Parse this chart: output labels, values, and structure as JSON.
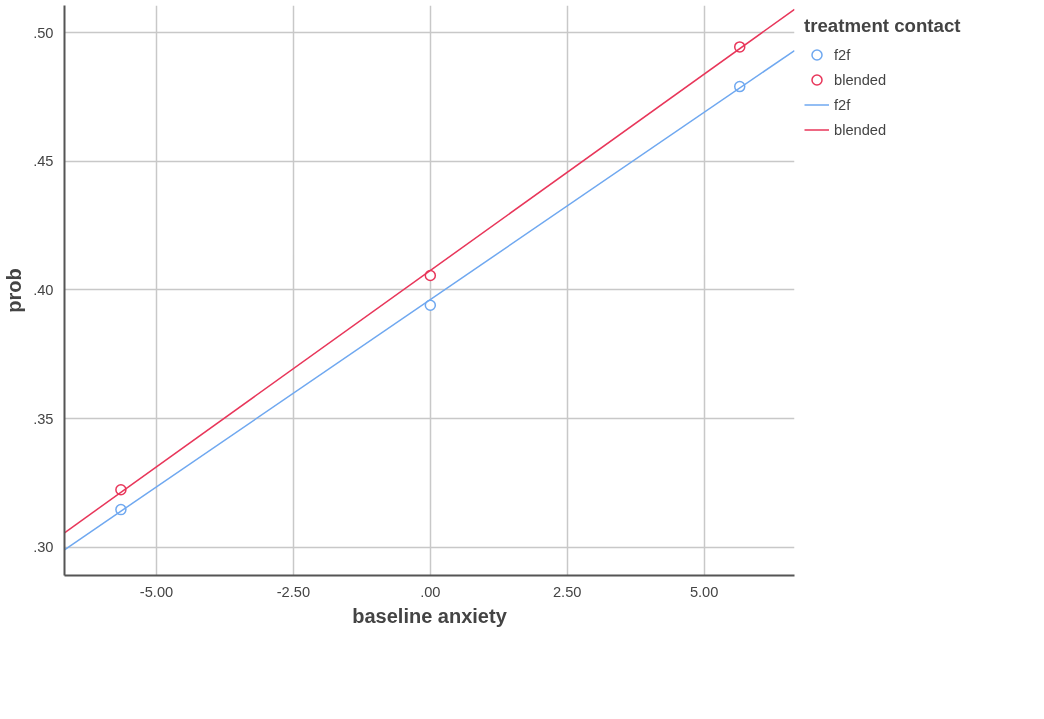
{
  "chart_data": {
    "type": "scatter",
    "xlabel": "baseline anxiety",
    "ylabel": "prob",
    "legend_title": "treatment contact",
    "xlim": [
      -6.68,
      6.65
    ],
    "ylim": [
      0.289,
      0.5105
    ],
    "xticks": [
      {
        "value": -5,
        "label": "-5.00"
      },
      {
        "value": -2.5,
        "label": "-2.50"
      },
      {
        "value": 0,
        "label": ".00"
      },
      {
        "value": 2.5,
        "label": "2.50"
      },
      {
        "value": 5,
        "label": "5.00"
      }
    ],
    "yticks": [
      {
        "value": 0.3,
        "label": ".30"
      },
      {
        "value": 0.35,
        "label": ".35"
      },
      {
        "value": 0.4,
        "label": ".40"
      },
      {
        "value": 0.45,
        "label": ".45"
      },
      {
        "value": 0.5,
        "label": ".50"
      }
    ],
    "grid": true,
    "legend": "right",
    "marker": "circle",
    "series": [
      {
        "name": "f2f",
        "color": "#6fa8f0",
        "x": [
          -5.65,
          0,
          5.65
        ],
        "values": [
          0.3146,
          0.394,
          0.479
        ]
      },
      {
        "name": "blended",
        "color": "#e8365a",
        "x": [
          -5.65,
          0,
          5.65
        ],
        "values": [
          0.3223,
          0.4056,
          0.4944
        ]
      },
      {
        "name": "f2f",
        "type": "line",
        "marker": "none",
        "color": "#6fa8f0",
        "x": [
          -6.68,
          6.65
        ],
        "values": [
          0.299,
          0.493
        ]
      },
      {
        "name": "blended",
        "type": "line",
        "marker": "none",
        "color": "#e8365a",
        "x": [
          -6.68,
          6.65
        ],
        "values": [
          0.3056,
          0.509
        ]
      }
    ]
  }
}
